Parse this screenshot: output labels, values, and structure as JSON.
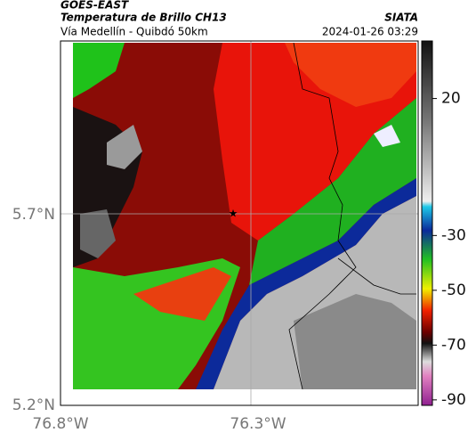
{
  "header": {
    "satellite": "GOES-EAST",
    "product": "Temperatura de Brillo CH13",
    "source": "SIATA",
    "region": "Vía Medellín - Quibdó 50km",
    "timestamp": "2024-01-26 03:29"
  },
  "axes": {
    "lat_labels": [
      "5.7°N",
      "5.2°N"
    ],
    "lon_labels": [
      "76.8°W",
      "76.3°W"
    ]
  },
  "colorbar": {
    "lim": [
      -92,
      41
    ],
    "ticks": [
      20,
      -30,
      -50,
      -70,
      -90
    ]
  }
}
